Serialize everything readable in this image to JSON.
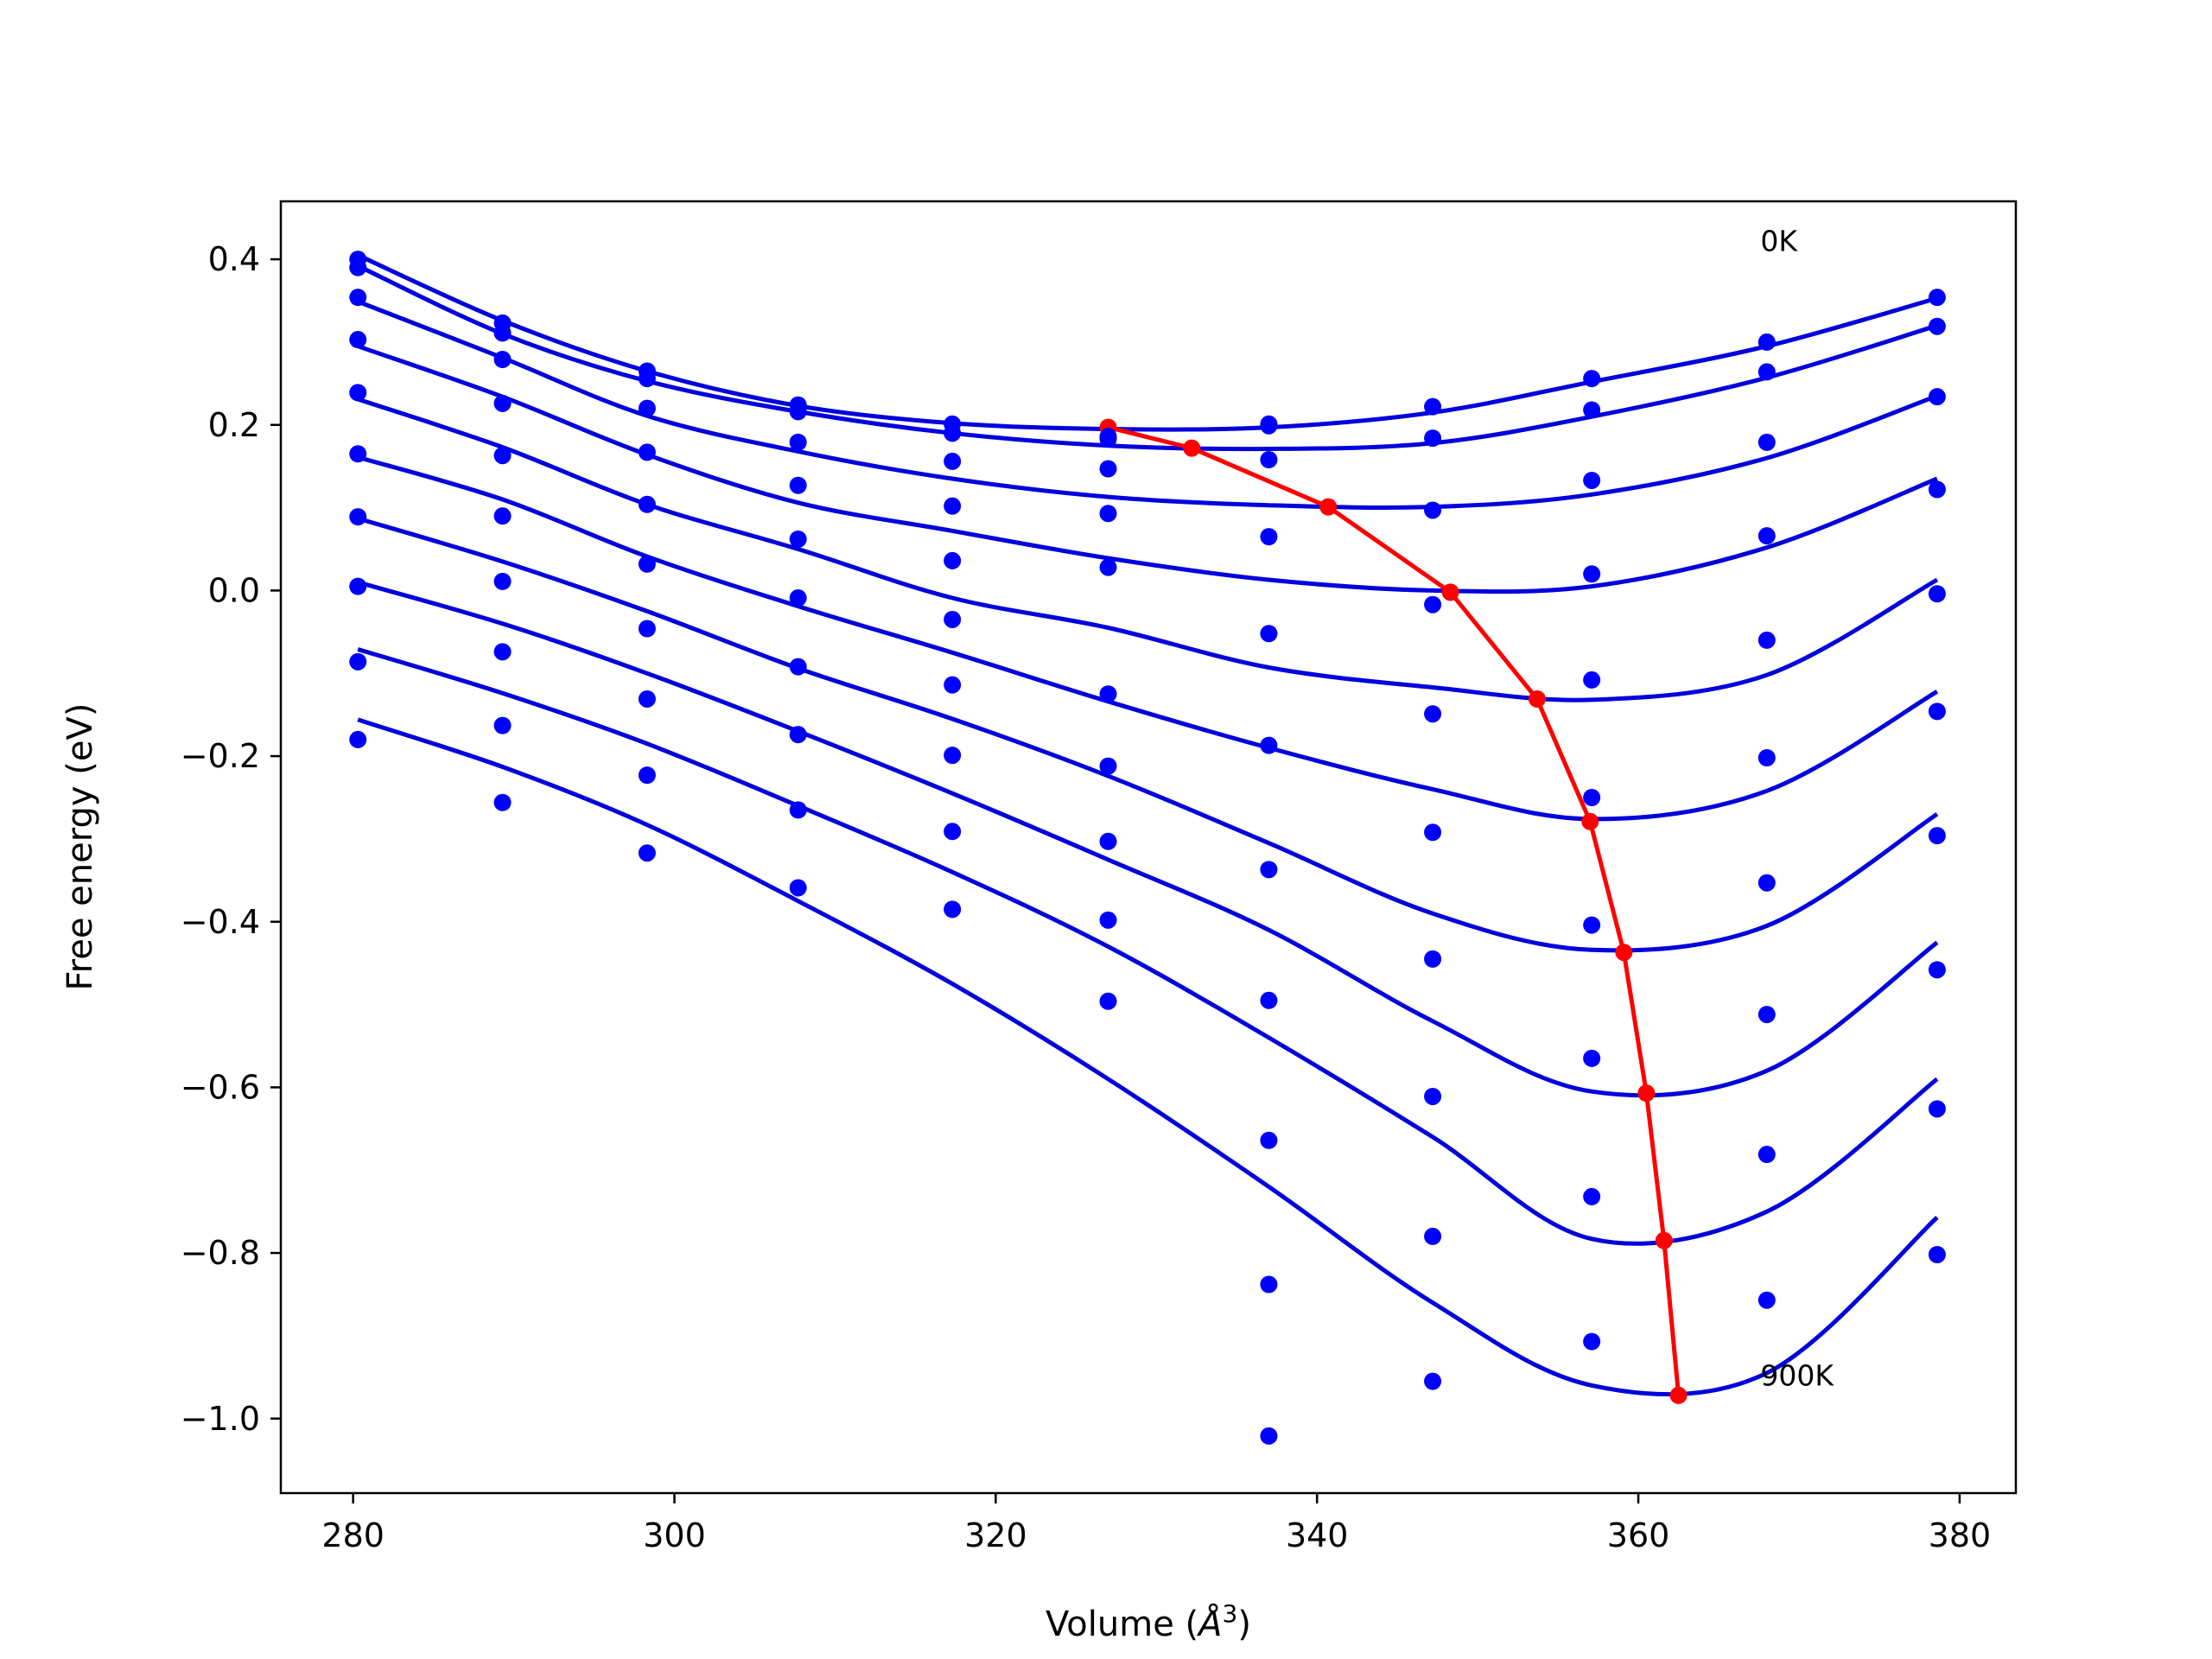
{
  "chart_data": {
    "type": "scatter",
    "title": "",
    "xlabel": "Volume (",
    "xlabel_unit": "Å",
    "xlabel_exponent": "3",
    "xlabel_close": ")",
    "ylabel": "Free energy (eV)",
    "xlim": [
      275.5,
      383.5
    ],
    "ylim": [
      -1.09,
      0.47
    ],
    "xticks": [
      280,
      300,
      320,
      340,
      360,
      380
    ],
    "xtick_labels": [
      "280",
      "300",
      "320",
      "340",
      "360",
      "380"
    ],
    "yticks": [
      -1.0,
      -0.8,
      -0.6,
      -0.4,
      -0.2,
      0.0,
      0.2,
      0.4
    ],
    "ytick_labels": [
      "−1.0",
      "−0.8",
      "−0.6",
      "−0.4",
      "−0.2",
      "0.0",
      "0.2",
      "0.4"
    ],
    "grid": false,
    "annotations": [
      {
        "text": "0K",
        "x": 367.6,
        "y": 0.41
      },
      {
        "text": "900K",
        "x": 367.6,
        "y": -0.96
      }
    ],
    "colors": {
      "points": "#0000ff",
      "fits": "#0000dd",
      "minima": "#ff0000",
      "axes": "#000000"
    },
    "volumes": [
      280.3,
      289.3,
      298.3,
      307.7,
      317.3,
      327.0,
      337.0,
      347.2,
      357.1,
      368.0,
      378.6
    ],
    "series": [
      {
        "points": [
          0.4,
          0.323,
          0.265,
          0.224,
          0.201,
          0.186,
          0.201,
          0.222,
          0.256,
          0.3,
          0.354
        ],
        "fit": [
          0.405,
          0.326,
          0.265,
          0.223,
          0.202,
          0.195,
          0.197,
          0.215,
          0.252,
          0.295,
          0.353
        ],
        "minimum": [
          327.0,
          0.197
        ]
      },
      {
        "points": [
          0.39,
          0.311,
          0.256,
          0.216,
          0.19,
          0.183,
          0.199,
          0.184,
          0.218,
          0.264,
          0.319
        ],
        "fit": [
          0.392,
          0.31,
          0.253,
          0.216,
          0.19,
          0.175,
          0.171,
          0.178,
          0.21,
          0.257,
          0.32
        ],
        "minimum": [
          332.2,
          0.172
        ]
      },
      {
        "points": [
          0.354,
          0.279,
          0.22,
          0.179,
          0.156,
          0.147,
          0.158,
          0.097,
          0.133,
          0.179,
          0.234
        ],
        "fit": [
          0.349,
          0.281,
          0.211,
          0.168,
          0.135,
          0.113,
          0.103,
          0.101,
          0.116,
          0.16,
          0.235
        ],
        "minimum": [
          340.7,
          0.101
        ]
      },
      {
        "points": [
          0.303,
          0.226,
          0.167,
          0.127,
          0.102,
          0.093,
          0.065,
          -0.017,
          0.02,
          0.066,
          0.122
        ],
        "fit": [
          0.295,
          0.234,
          0.164,
          0.106,
          0.072,
          0.039,
          0.013,
          0.0,
          0.005,
          0.052,
          0.135
        ],
        "minimum": [
          348.3,
          -0.002
        ]
      },
      {
        "points": [
          0.239,
          0.163,
          0.104,
          0.062,
          0.036,
          0.028,
          -0.052,
          -0.149,
          -0.108,
          -0.06,
          -0.004
        ],
        "fit": [
          0.231,
          0.173,
          0.104,
          0.05,
          -0.009,
          -0.045,
          -0.093,
          -0.117,
          -0.132,
          -0.102,
          0.013
        ],
        "minimum": [
          353.7,
          -0.131
        ]
      },
      {
        "points": [
          0.165,
          0.09,
          0.032,
          -0.009,
          -0.035,
          -0.125,
          -0.187,
          -0.292,
          -0.25,
          -0.202,
          -0.146
        ],
        "fit": [
          0.161,
          0.11,
          0.041,
          -0.019,
          -0.075,
          -0.134,
          -0.19,
          -0.24,
          -0.276,
          -0.242,
          -0.122
        ],
        "minimum": [
          357.0,
          -0.279
        ]
      },
      {
        "points": [
          0.089,
          0.011,
          -0.046,
          -0.092,
          -0.114,
          -0.212,
          -0.337,
          -0.445,
          -0.404,
          -0.353,
          -0.296
        ],
        "fit": [
          0.087,
          0.035,
          -0.025,
          -0.094,
          -0.155,
          -0.224,
          -0.305,
          -0.39,
          -0.434,
          -0.405,
          -0.27
        ],
        "minimum": [
          359.1,
          -0.437
        ]
      },
      {
        "points": [
          0.005,
          -0.074,
          -0.131,
          -0.174,
          -0.199,
          -0.303,
          -0.495,
          -0.611,
          -0.565,
          -0.512,
          -0.458
        ],
        "fit": [
          0.01,
          -0.04,
          -0.1,
          -0.17,
          -0.245,
          -0.325,
          -0.41,
          -0.52,
          -0.605,
          -0.58,
          -0.425
        ],
        "minimum": [
          360.5,
          -0.607
        ]
      },
      {
        "points": [
          -0.086,
          -0.163,
          -0.223,
          -0.265,
          -0.291,
          -0.398,
          -0.664,
          -0.78,
          -0.732,
          -0.681,
          -0.626
        ],
        "fit": [
          -0.071,
          -0.124,
          -0.185,
          -0.26,
          -0.34,
          -0.43,
          -0.54,
          -0.66,
          -0.783,
          -0.75,
          -0.59
        ],
        "minimum": [
          361.6,
          -0.785
        ]
      },
      {
        "points": [
          -0.18,
          -0.256,
          -0.317,
          -0.359,
          -0.385,
          -0.496,
          -0.838,
          -0.955,
          -0.907,
          -0.857,
          -0.802
        ],
        "fit": [
          -0.156,
          -0.213,
          -0.283,
          -0.375,
          -0.475,
          -0.59,
          -0.72,
          -0.86,
          -0.96,
          -0.945,
          -0.757
        ],
        "minimum": [
          362.5,
          -0.972
        ]
      },
      {
        "points": [
          null,
          null,
          null,
          null,
          null,
          null,
          -1.021,
          null,
          null,
          null,
          null
        ],
        "fit": [],
        "minimum": null
      }
    ]
  }
}
